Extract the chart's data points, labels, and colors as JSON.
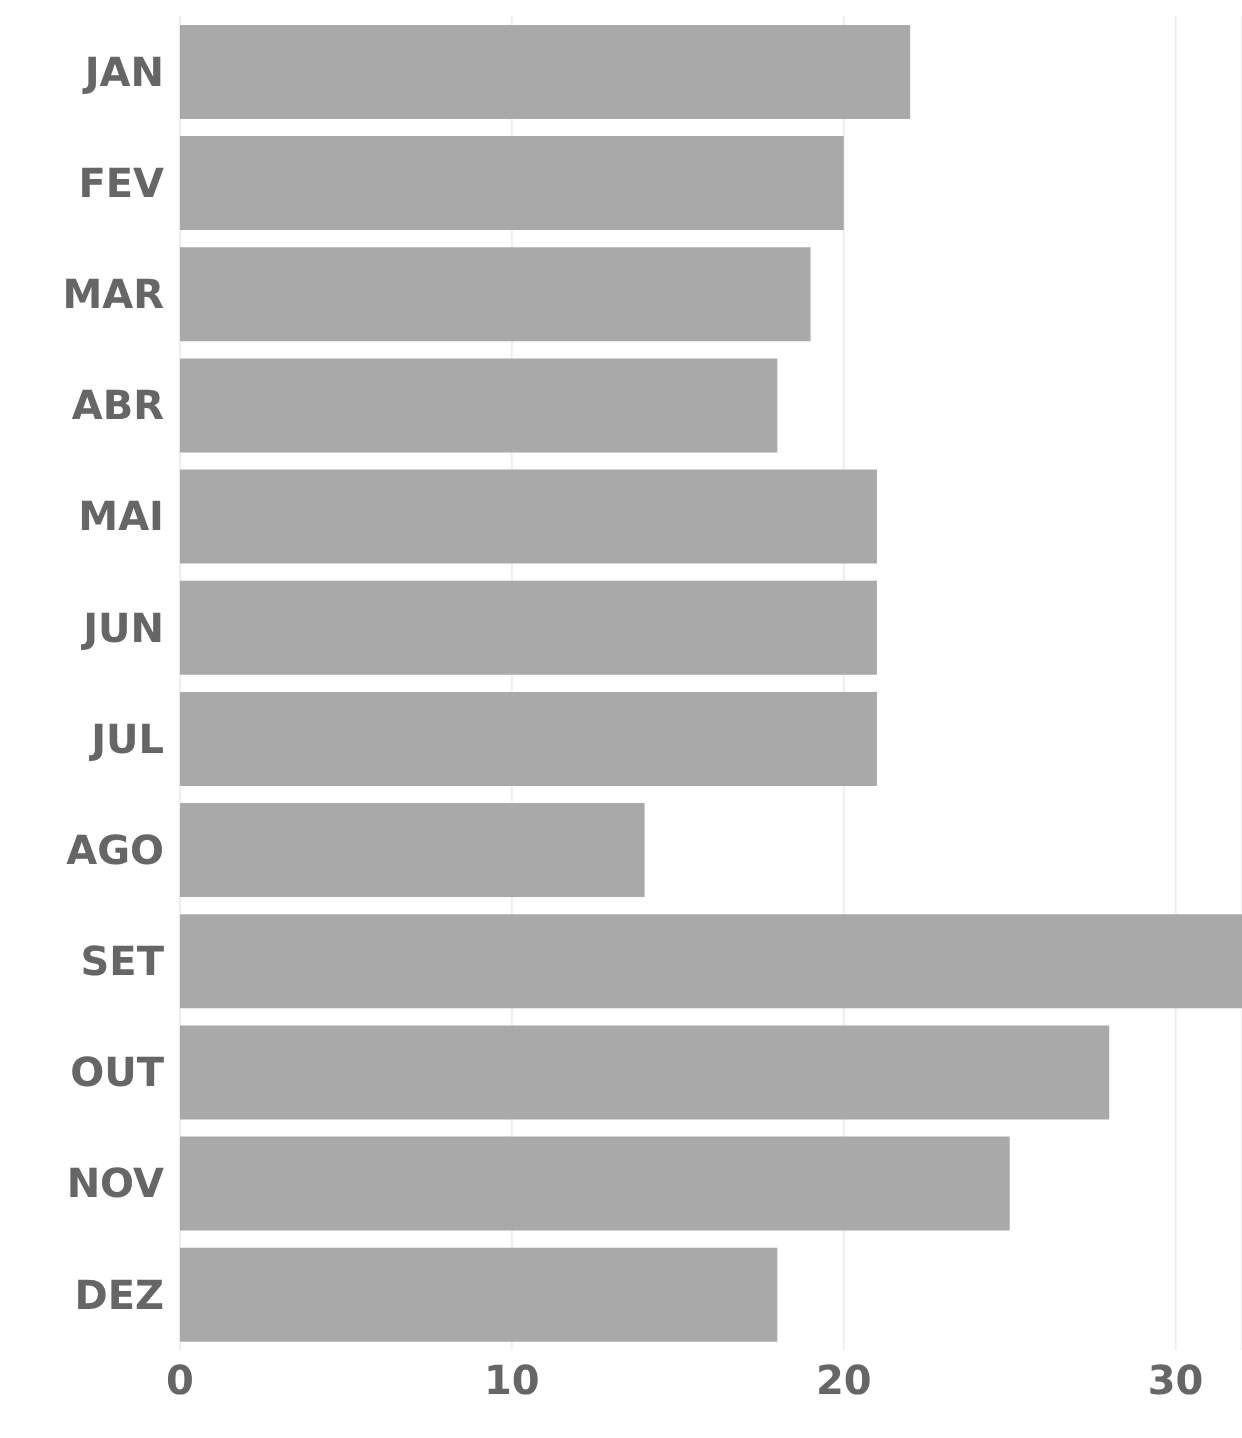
{
  "chart_data": {
    "type": "bar",
    "orientation": "horizontal",
    "categories": [
      "JAN",
      "FEV",
      "MAR",
      "ABR",
      "MAI",
      "JUN",
      "JUL",
      "AGO",
      "SET",
      "OUT",
      "NOV",
      "DEZ"
    ],
    "values": [
      22,
      20,
      19,
      18,
      21,
      21,
      21,
      14,
      32,
      28,
      25,
      18
    ],
    "color": "#a9a9a9",
    "xlim": [
      0,
      32
    ],
    "xticks": [
      0,
      10,
      20,
      30
    ],
    "grid": "x"
  }
}
